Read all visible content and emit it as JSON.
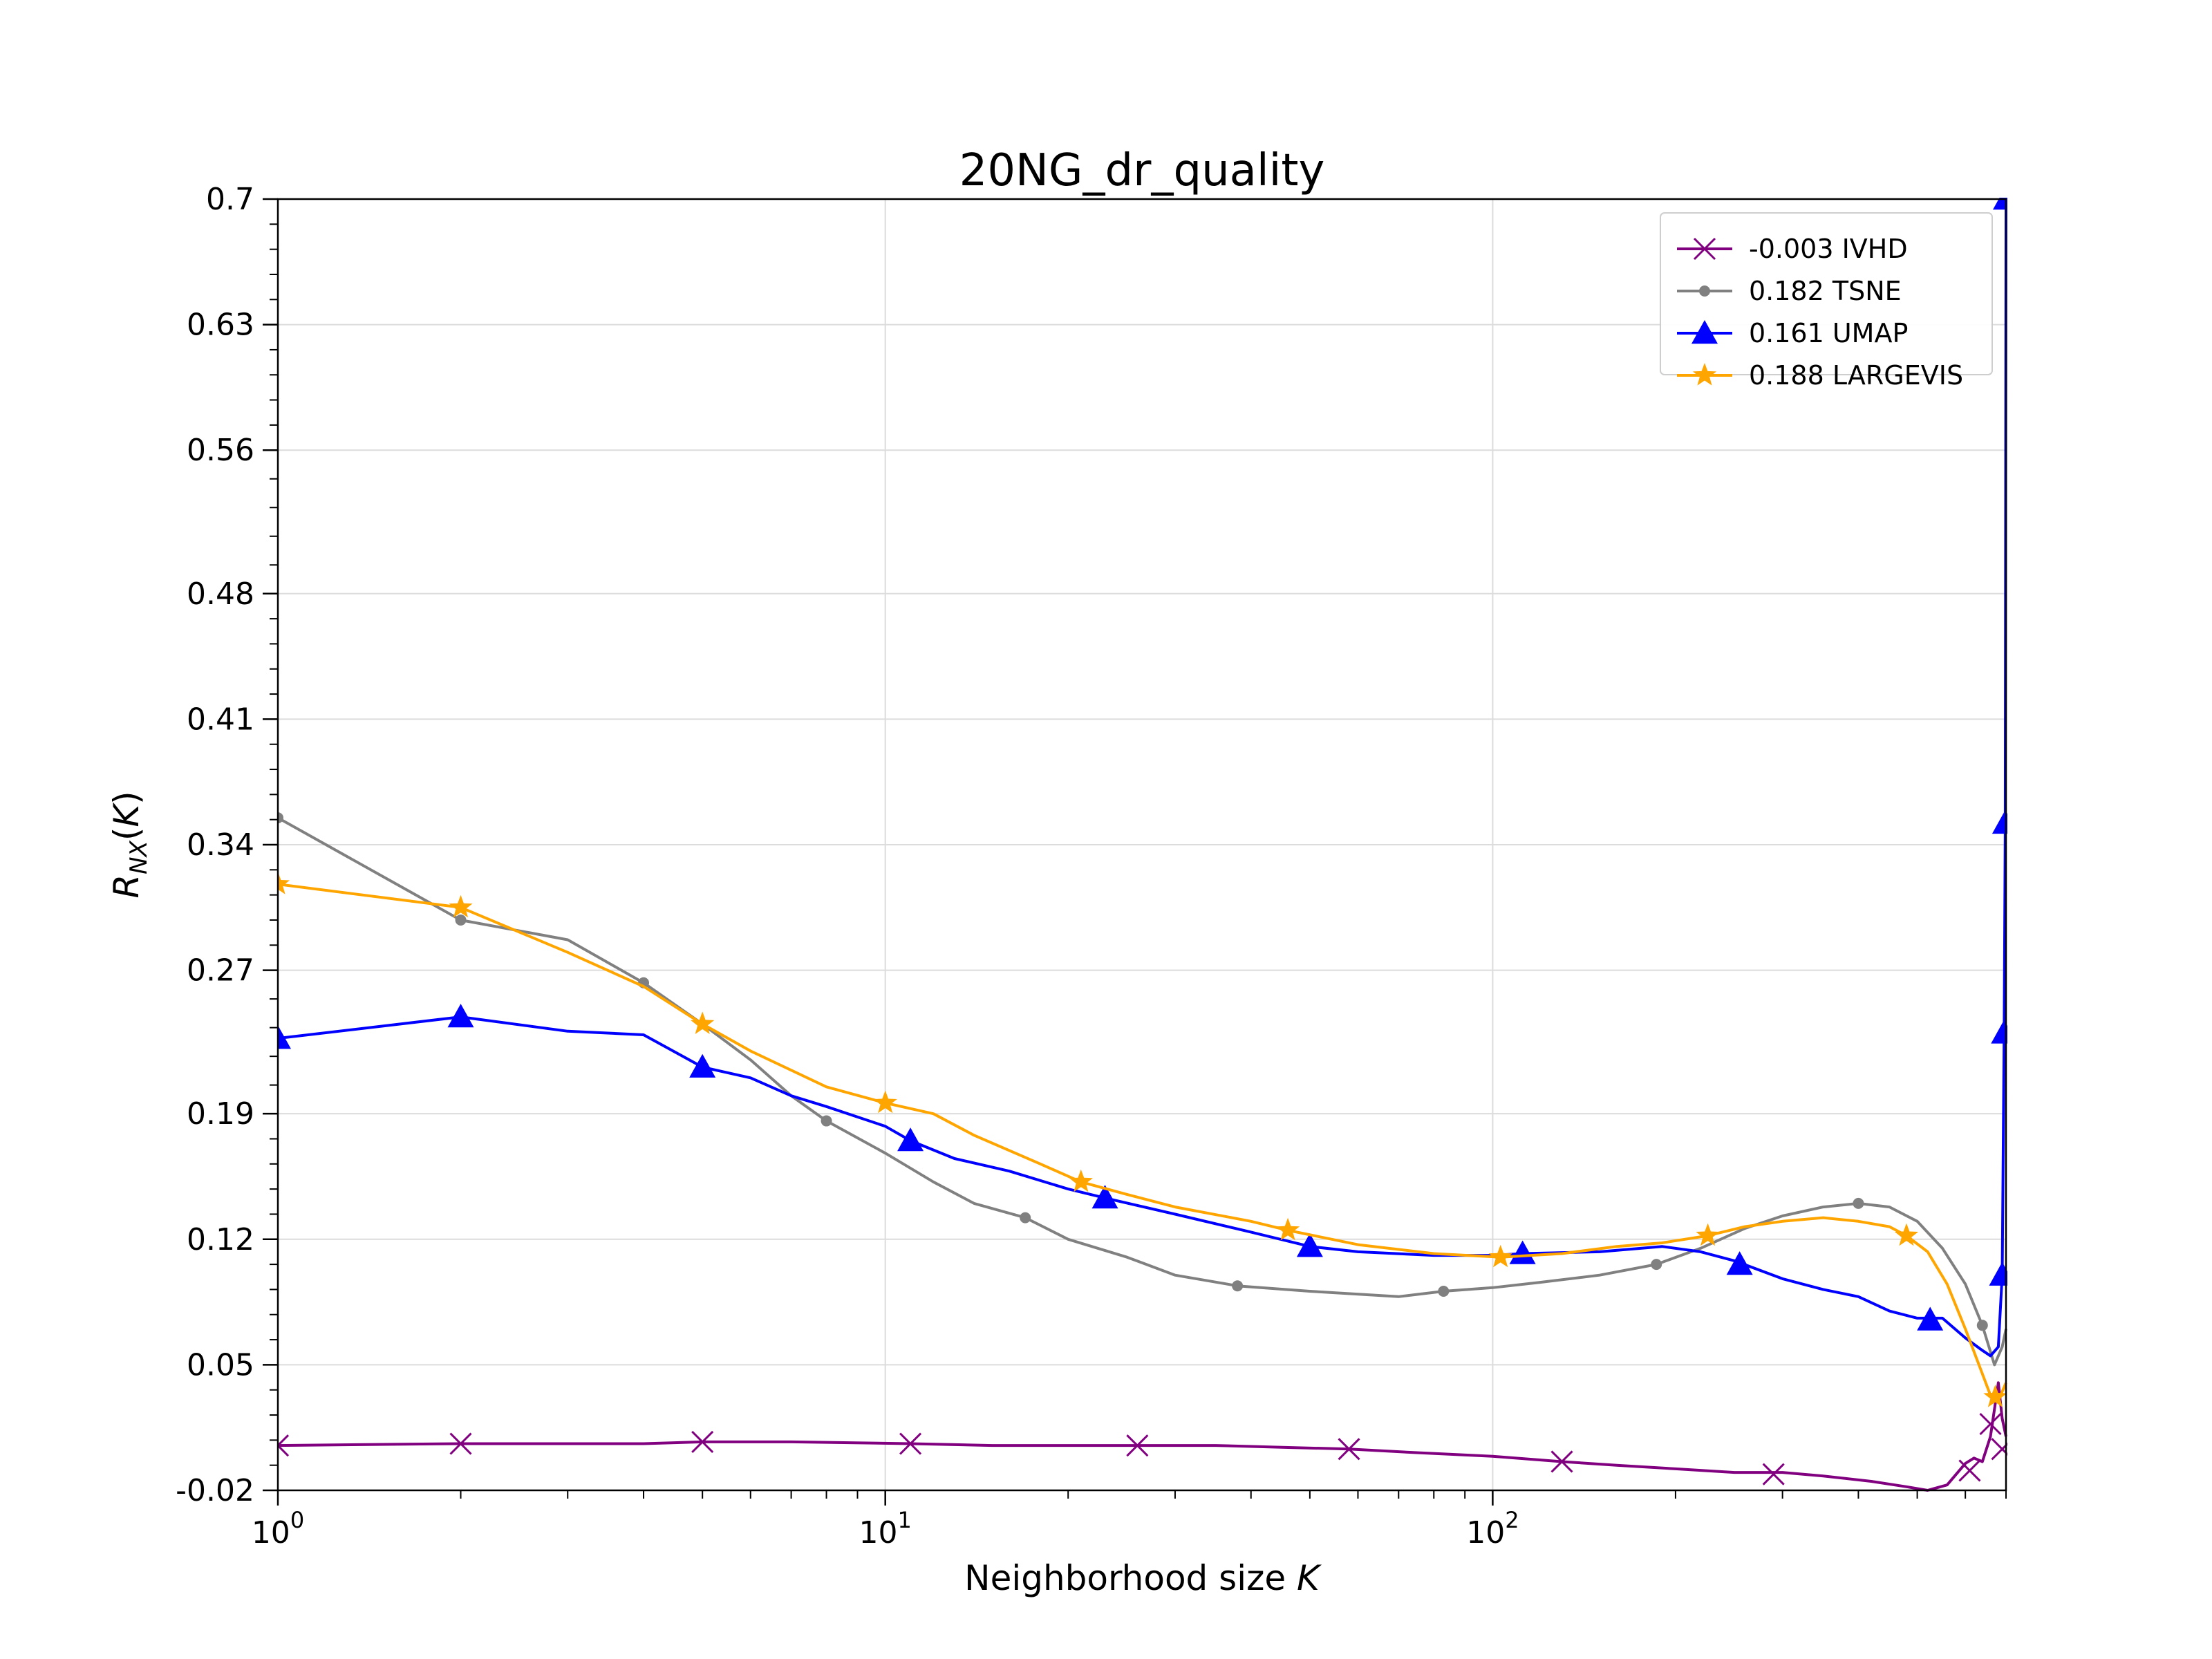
{
  "chart_data": {
    "type": "line",
    "title": "20NG_dr_quality",
    "xlabel": "Neighborhood size K",
    "ylabel_main": "R",
    "ylabel_sub": "NX",
    "ylabel_arg": "(K)",
    "x_scale": "log",
    "xlim": [
      1,
      700
    ],
    "ylim": [
      -0.02,
      0.7
    ],
    "x_ticks": [
      {
        "value": 1,
        "base": "10",
        "exp": "0"
      },
      {
        "value": 10,
        "base": "10",
        "exp": "1"
      },
      {
        "value": 100,
        "base": "10",
        "exp": "2"
      }
    ],
    "y_ticks": [
      {
        "value": 0.7,
        "label": "0.7"
      },
      {
        "value": 0.63,
        "label": "0.63"
      },
      {
        "value": 0.56,
        "label": "0.56"
      },
      {
        "value": 0.48,
        "label": "0.48"
      },
      {
        "value": 0.41,
        "label": "0.41"
      },
      {
        "value": 0.34,
        "label": "0.34"
      },
      {
        "value": 0.27,
        "label": "0.27"
      },
      {
        "value": 0.19,
        "label": "0.19"
      },
      {
        "value": 0.12,
        "label": "0.12"
      },
      {
        "value": 0.05,
        "label": "0.05"
      },
      {
        "value": -0.02,
        "label": "-0.02"
      }
    ],
    "grid": true,
    "legend_position": "top-right",
    "series": [
      {
        "name": "-0.003 IVHD",
        "color": "#800080",
        "marker": "x",
        "line": [
          [
            1,
            0.005
          ],
          [
            2,
            0.006
          ],
          [
            3,
            0.006
          ],
          [
            4,
            0.006
          ],
          [
            5,
            0.007
          ],
          [
            7,
            0.007
          ],
          [
            11,
            0.006
          ],
          [
            15,
            0.005
          ],
          [
            20,
            0.005
          ],
          [
            26,
            0.005
          ],
          [
            35,
            0.005
          ],
          [
            45,
            0.004
          ],
          [
            58,
            0.003
          ],
          [
            75,
            0.001
          ],
          [
            100,
            -0.001
          ],
          [
            130,
            -0.004
          ],
          [
            160,
            -0.006
          ],
          [
            200,
            -0.008
          ],
          [
            250,
            -0.01
          ],
          [
            300,
            -0.01
          ],
          [
            350,
            -0.012
          ],
          [
            420,
            -0.015
          ],
          [
            480,
            -0.018
          ],
          [
            520,
            -0.02
          ],
          [
            560,
            -0.017
          ],
          [
            600,
            -0.005
          ],
          [
            620,
            -0.002
          ],
          [
            640,
            -0.004
          ],
          [
            660,
            0.01
          ],
          [
            680,
            0.04
          ],
          [
            690,
            0.02
          ],
          [
            700,
            0.01
          ]
        ],
        "markers": [
          [
            1,
            0.005
          ],
          [
            2,
            0.006
          ],
          [
            5,
            0.007
          ],
          [
            11,
            0.006
          ],
          [
            26,
            0.005
          ],
          [
            58,
            0.003
          ],
          [
            130,
            -0.004
          ],
          [
            290,
            -0.011
          ],
          [
            610,
            -0.009
          ],
          [
            660,
            0.017
          ],
          [
            690,
            0.003
          ]
        ]
      },
      {
        "name": "0.182 TSNE",
        "color": "#808080",
        "marker": "o",
        "line": [
          [
            1,
            0.355
          ],
          [
            2,
            0.298
          ],
          [
            3,
            0.287
          ],
          [
            4,
            0.263
          ],
          [
            5,
            0.24
          ],
          [
            6,
            0.22
          ],
          [
            7,
            0.2
          ],
          [
            8,
            0.186
          ],
          [
            10,
            0.168
          ],
          [
            12,
            0.152
          ],
          [
            14,
            0.14
          ],
          [
            17,
            0.132
          ],
          [
            20,
            0.12
          ],
          [
            25,
            0.11
          ],
          [
            30,
            0.1
          ],
          [
            38,
            0.094
          ],
          [
            50,
            0.091
          ],
          [
            70,
            0.088
          ],
          [
            83,
            0.091
          ],
          [
            100,
            0.093
          ],
          [
            120,
            0.096
          ],
          [
            150,
            0.1
          ],
          [
            186,
            0.106
          ],
          [
            220,
            0.115
          ],
          [
            260,
            0.126
          ],
          [
            300,
            0.133
          ],
          [
            350,
            0.138
          ],
          [
            400,
            0.14
          ],
          [
            450,
            0.138
          ],
          [
            500,
            0.13
          ],
          [
            550,
            0.115
          ],
          [
            600,
            0.095
          ],
          [
            640,
            0.072
          ],
          [
            670,
            0.05
          ],
          [
            690,
            0.06
          ],
          [
            700,
            0.07
          ]
        ],
        "markers": [
          [
            1,
            0.355
          ],
          [
            2,
            0.298
          ],
          [
            4,
            0.263
          ],
          [
            8,
            0.186
          ],
          [
            17,
            0.132
          ],
          [
            38,
            0.094
          ],
          [
            83,
            0.091
          ],
          [
            186,
            0.106
          ],
          [
            400,
            0.14
          ],
          [
            640,
            0.072
          ]
        ]
      },
      {
        "name": "0.161 UMAP",
        "color": "#0000ff",
        "marker": "^",
        "line": [
          [
            1,
            0.232
          ],
          [
            2,
            0.244
          ],
          [
            3,
            0.236
          ],
          [
            4,
            0.234
          ],
          [
            5,
            0.216
          ],
          [
            6,
            0.21
          ],
          [
            7,
            0.2
          ],
          [
            8,
            0.194
          ],
          [
            10,
            0.183
          ],
          [
            11,
            0.175
          ],
          [
            13,
            0.165
          ],
          [
            16,
            0.158
          ],
          [
            20,
            0.148
          ],
          [
            23,
            0.143
          ],
          [
            30,
            0.134
          ],
          [
            40,
            0.124
          ],
          [
            50,
            0.116
          ],
          [
            60,
            0.113
          ],
          [
            80,
            0.111
          ],
          [
            100,
            0.111
          ],
          [
            112,
            0.112
          ],
          [
            150,
            0.113
          ],
          [
            190,
            0.116
          ],
          [
            220,
            0.113
          ],
          [
            250,
            0.108
          ],
          [
            300,
            0.098
          ],
          [
            350,
            0.092
          ],
          [
            400,
            0.088
          ],
          [
            450,
            0.08
          ],
          [
            500,
            0.076
          ],
          [
            550,
            0.076
          ],
          [
            600,
            0.065
          ],
          [
            640,
            0.058
          ],
          [
            660,
            0.055
          ],
          [
            680,
            0.06
          ],
          [
            690,
            0.1
          ],
          [
            695,
            0.235
          ],
          [
            698,
            0.35
          ],
          [
            700,
            0.7
          ]
        ],
        "markers": [
          [
            1,
            0.232
          ],
          [
            2,
            0.244
          ],
          [
            5,
            0.216
          ],
          [
            11,
            0.175
          ],
          [
            23,
            0.143
          ],
          [
            50,
            0.116
          ],
          [
            112,
            0.112
          ],
          [
            255,
            0.106
          ],
          [
            525,
            0.075
          ],
          [
            690,
            0.1
          ],
          [
            695,
            0.235
          ],
          [
            698,
            0.352
          ],
          [
            700,
            0.7
          ]
        ]
      },
      {
        "name": "0.188 LARGEVIS",
        "color": "#ffa500",
        "marker": "*",
        "line": [
          [
            1,
            0.318
          ],
          [
            2,
            0.305
          ],
          [
            3,
            0.28
          ],
          [
            4,
            0.261
          ],
          [
            5,
            0.24
          ],
          [
            6,
            0.225
          ],
          [
            8,
            0.205
          ],
          [
            10,
            0.196
          ],
          [
            12,
            0.19
          ],
          [
            14,
            0.178
          ],
          [
            18,
            0.162
          ],
          [
            21,
            0.152
          ],
          [
            25,
            0.145
          ],
          [
            30,
            0.138
          ],
          [
            40,
            0.13
          ],
          [
            46,
            0.125
          ],
          [
            60,
            0.117
          ],
          [
            80,
            0.112
          ],
          [
            103,
            0.11
          ],
          [
            130,
            0.112
          ],
          [
            160,
            0.116
          ],
          [
            190,
            0.118
          ],
          [
            226,
            0.122
          ],
          [
            260,
            0.127
          ],
          [
            300,
            0.13
          ],
          [
            350,
            0.132
          ],
          [
            400,
            0.13
          ],
          [
            450,
            0.127
          ],
          [
            480,
            0.122
          ],
          [
            520,
            0.113
          ],
          [
            560,
            0.095
          ],
          [
            600,
            0.07
          ],
          [
            640,
            0.045
          ],
          [
            660,
            0.033
          ],
          [
            680,
            0.03
          ],
          [
            700,
            0.04
          ]
        ],
        "markers": [
          [
            1,
            0.318
          ],
          [
            2,
            0.305
          ],
          [
            5,
            0.24
          ],
          [
            10,
            0.196
          ],
          [
            21,
            0.152
          ],
          [
            46,
            0.125
          ],
          [
            103,
            0.11
          ],
          [
            226,
            0.122
          ],
          [
            480,
            0.122
          ],
          [
            672,
            0.032
          ]
        ]
      }
    ]
  }
}
